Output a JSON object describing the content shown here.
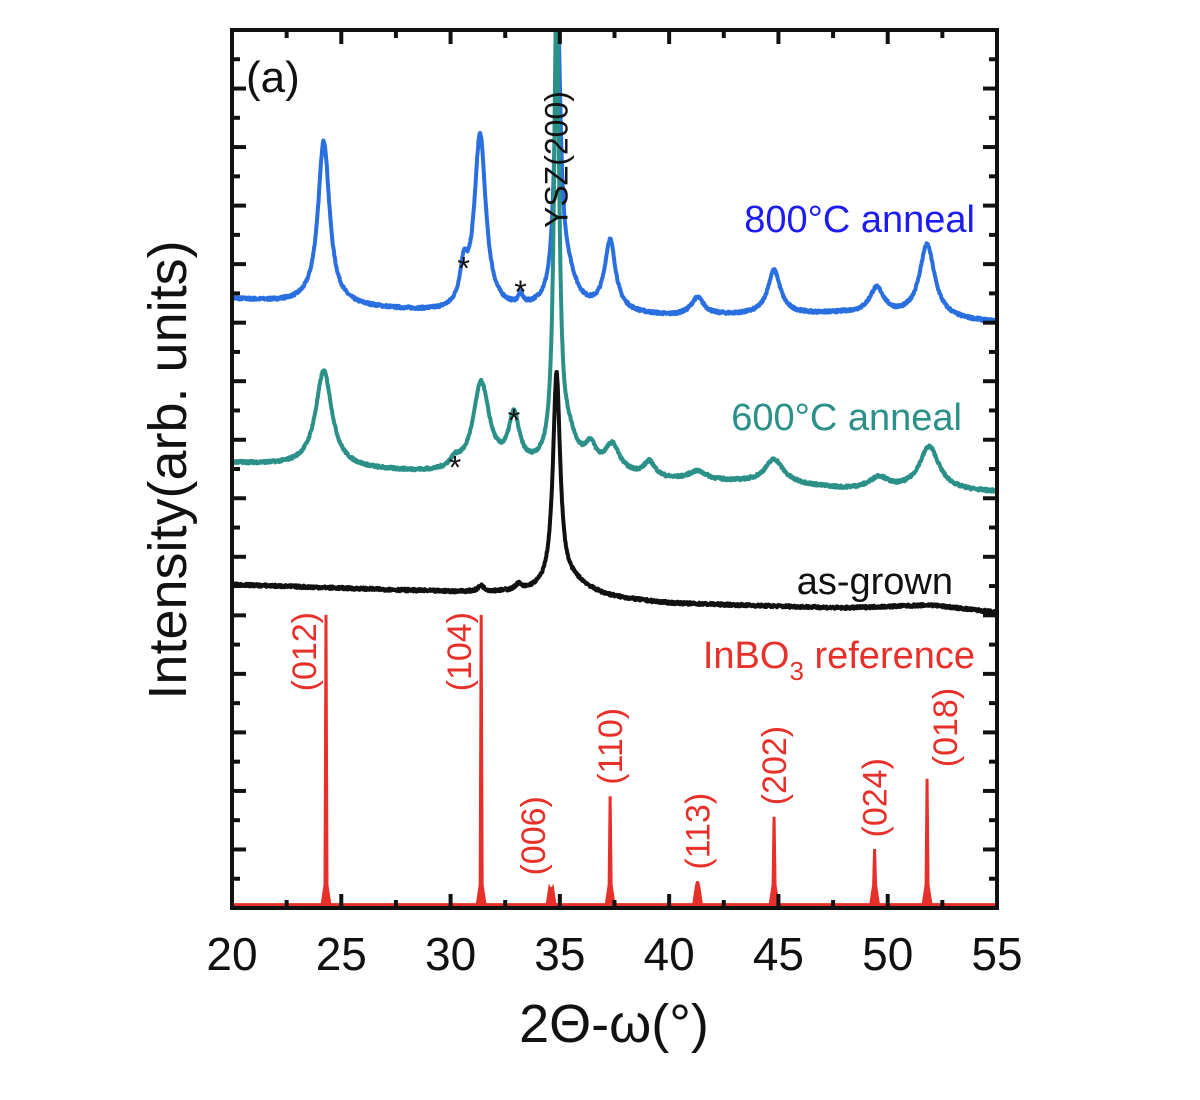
{
  "chart_data": {
    "type": "line",
    "panel_label": "(a)",
    "title": "",
    "xlabel": "2Θ-ω(°)",
    "ylabel": "Intensity(arb. units)",
    "xlim": [
      20,
      55
    ],
    "ylim": [
      0,
      30
    ],
    "x_ticks": [
      20,
      25,
      30,
      35,
      40,
      45,
      50,
      55
    ],
    "x_minor_step": 2.5,
    "y_tick_labels_shown": false,
    "y_major_step": 2,
    "y_minor_step": 1,
    "grid": false,
    "legend": "none (inline series labels)",
    "series": [
      {
        "name": "800°C anneal",
        "color": "#2a6fe0",
        "label_color": "#1c1cf0",
        "baseline": [
          [
            20,
            20.8
          ],
          [
            30,
            20.3
          ],
          [
            35,
            20.4
          ],
          [
            40,
            20.2
          ],
          [
            48,
            20.3
          ],
          [
            55,
            20.0
          ]
        ],
        "peaks": [
          {
            "x": 24.2,
            "height": 5.6,
            "width": 0.32
          },
          {
            "x": 30.6,
            "height": 1.2,
            "width": 0.2
          },
          {
            "x": 31.35,
            "height": 6.0,
            "width": 0.32
          },
          {
            "x": 33.2,
            "height": 0.35,
            "width": 0.12
          },
          {
            "x": 34.9,
            "height": 9.5,
            "width": 0.16
          },
          {
            "x": 35.3,
            "height": 1.2,
            "width": 0.5
          },
          {
            "x": 37.3,
            "height": 2.4,
            "width": 0.3
          },
          {
            "x": 41.3,
            "height": 0.6,
            "width": 0.35
          },
          {
            "x": 44.8,
            "height": 1.5,
            "width": 0.35
          },
          {
            "x": 49.5,
            "height": 0.9,
            "width": 0.4
          },
          {
            "x": 51.8,
            "height": 2.5,
            "width": 0.42
          }
        ]
      },
      {
        "name": "600°C anneal",
        "color": "#2a9088",
        "label_color": "#2a9088",
        "baseline": [
          [
            20,
            15.2
          ],
          [
            30,
            14.8
          ],
          [
            35,
            15.0
          ],
          [
            40,
            14.6
          ],
          [
            45,
            14.5
          ],
          [
            48,
            14.3
          ],
          [
            55,
            14.2
          ]
        ],
        "peaks": [
          {
            "x": 24.2,
            "height": 3.3,
            "width": 0.45
          },
          {
            "x": 30.2,
            "height": 0.3,
            "width": 0.3
          },
          {
            "x": 31.4,
            "height": 3.0,
            "width": 0.45
          },
          {
            "x": 32.9,
            "height": 1.7,
            "width": 0.3
          },
          {
            "x": 34.85,
            "height": 16.0,
            "width": 0.14
          },
          {
            "x": 35.4,
            "height": 0.9,
            "width": 0.45
          },
          {
            "x": 36.4,
            "height": 0.7,
            "width": 0.3
          },
          {
            "x": 37.4,
            "height": 0.9,
            "width": 0.4
          },
          {
            "x": 39.1,
            "height": 0.5,
            "width": 0.3
          },
          {
            "x": 41.3,
            "height": 0.3,
            "width": 0.5
          },
          {
            "x": 44.8,
            "height": 0.8,
            "width": 0.5
          },
          {
            "x": 49.6,
            "height": 0.4,
            "width": 0.5
          },
          {
            "x": 51.9,
            "height": 1.5,
            "width": 0.55
          }
        ]
      },
      {
        "name": "as-grown",
        "color": "#111111",
        "label_color": "#111111",
        "baseline": [
          [
            20,
            11.05
          ],
          [
            30,
            10.8
          ],
          [
            34,
            10.75
          ],
          [
            40,
            10.4
          ],
          [
            48,
            10.25
          ],
          [
            52,
            10.35
          ],
          [
            55,
            10.1
          ]
        ],
        "peaks": [
          {
            "x": 31.4,
            "height": 0.2,
            "width": 0.15
          },
          {
            "x": 33.1,
            "height": 0.2,
            "width": 0.15
          },
          {
            "x": 34.85,
            "height": 7.3,
            "width": 0.2
          },
          {
            "x": 35.6,
            "height": 0.45,
            "width": 1.0
          }
        ]
      },
      {
        "name": "InBO3 reference",
        "color": "#e8302a",
        "label_color": "#e8302a",
        "baseline": [
          [
            20,
            0.1
          ],
          [
            55,
            0.1
          ]
        ],
        "sticks": [
          {
            "hkl": "(012)",
            "x": 24.3,
            "height": 10.0
          },
          {
            "hkl": "(104)",
            "x": 31.4,
            "height": 10.0
          },
          {
            "hkl": "(006)",
            "x": 34.6,
            "height": 0.7
          },
          {
            "hkl": "(110)",
            "x": 37.3,
            "height": 3.8
          },
          {
            "hkl": "(113)",
            "x": 41.3,
            "height": 0.9
          },
          {
            "hkl": "(202)",
            "x": 44.8,
            "height": 3.1
          },
          {
            "hkl": "(024)",
            "x": 49.4,
            "height": 2.0
          },
          {
            "hkl": "(018)",
            "x": 51.8,
            "height": 4.4
          }
        ]
      }
    ],
    "annotations": [
      {
        "text": "YSZ(200)",
        "x": 34.9,
        "orientation": "vertical"
      },
      {
        "text": "*",
        "series": "800°C anneal",
        "x": 30.6
      },
      {
        "text": "*",
        "series": "800°C anneal",
        "x": 33.2
      },
      {
        "text": "*",
        "series": "600°C anneal",
        "x": 30.2
      },
      {
        "text": "*",
        "series": "600°C anneal",
        "x": 32.9
      }
    ],
    "series_labels": {
      "s800": "800°C anneal",
      "s600": "600°C anneal",
      "asgrown": "as-grown",
      "ref_main": "InBO",
      "ref_sub": "3",
      "ref_tail": " reference"
    }
  }
}
